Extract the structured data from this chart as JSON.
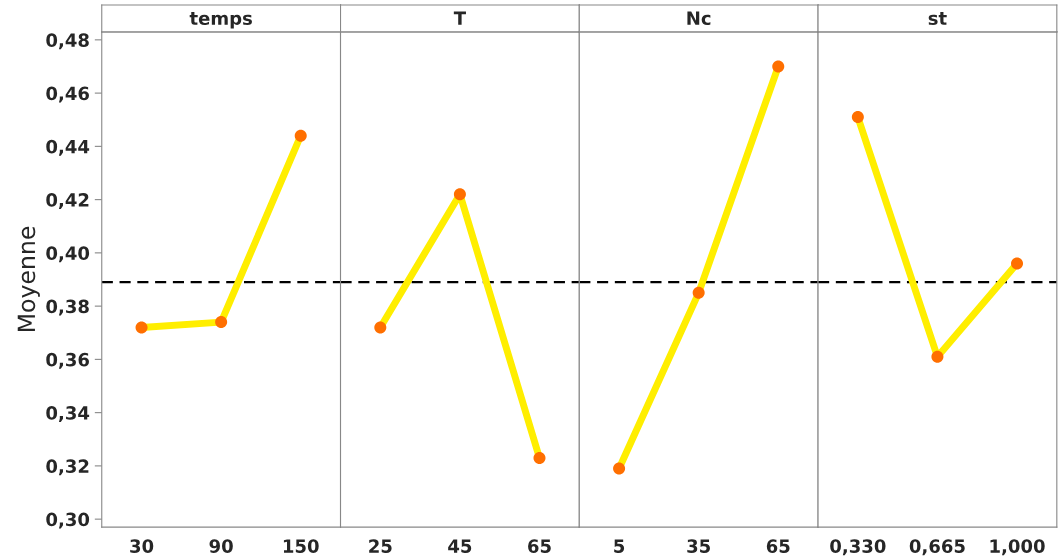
{
  "chart_data": [
    {
      "type": "line",
      "title": "temps",
      "ylabel": "Moyenne",
      "categories": [
        "30",
        "90",
        "150"
      ],
      "series": [
        {
          "color": "#ffee00",
          "colors": [
            "#ff6f00",
            "#ff6f00",
            "#ff6f00"
          ],
          "values": [
            0.372,
            0.374,
            0.444
          ]
        }
      ],
      "ylim": [
        0.297,
        0.483
      ],
      "yticks": [
        {
          "value": 0.3,
          "label": "0,30"
        },
        {
          "value": 0.32,
          "label": "0,32"
        },
        {
          "value": 0.34,
          "label": "0,34"
        },
        {
          "value": 0.36,
          "label": "0,36"
        },
        {
          "value": 0.38,
          "label": "0,38"
        },
        {
          "value": 0.4,
          "label": "0,40"
        },
        {
          "value": 0.42,
          "label": "0,42"
        },
        {
          "value": 0.44,
          "label": "0,44"
        },
        {
          "value": 0.46,
          "label": "0,46"
        },
        {
          "value": 0.48,
          "label": "0,48"
        }
      ],
      "marker": "circle",
      "ref_lines": [
        {
          "axis": "y",
          "value": 0.389,
          "color": "#000000",
          "line_style": "dashed"
        }
      ],
      "grid": false
    },
    {
      "type": "line",
      "title": "T",
      "categories": [
        "25",
        "45",
        "65"
      ],
      "series": [
        {
          "color": "#ffee00",
          "colors": [
            "#ff6f00",
            "#ff6f00",
            "#ff6f00"
          ],
          "values": [
            0.372,
            0.422,
            0.323
          ]
        }
      ],
      "ylim": [
        0.297,
        0.483
      ],
      "tick_labels": "x",
      "marker": "circle",
      "ref_lines": [
        {
          "axis": "y",
          "value": 0.389,
          "color": "#000000",
          "line_style": "dashed"
        }
      ],
      "grid": false
    },
    {
      "type": "line",
      "title": "Nc",
      "categories": [
        "5",
        "35",
        "65"
      ],
      "series": [
        {
          "color": "#ffee00",
          "colors": [
            "#ff6f00",
            "#ff6f00",
            "#ff6f00"
          ],
          "values": [
            0.319,
            0.385,
            0.47
          ]
        }
      ],
      "ylim": [
        0.297,
        0.483
      ],
      "tick_labels": "x",
      "marker": "circle",
      "ref_lines": [
        {
          "axis": "y",
          "value": 0.389,
          "color": "#000000",
          "line_style": "dashed"
        }
      ],
      "grid": false
    },
    {
      "type": "line",
      "title": "st",
      "categories": [
        "0,330",
        "0,665",
        "1,000"
      ],
      "series": [
        {
          "color": "#ffee00",
          "colors": [
            "#ff6f00",
            "#ff6f00",
            "#ff6f00"
          ],
          "values": [
            0.451,
            0.361,
            0.396
          ]
        }
      ],
      "ylim": [
        0.297,
        0.483
      ],
      "tick_labels": "x",
      "marker": "circle",
      "ref_lines": [
        {
          "axis": "y",
          "value": 0.389,
          "color": "#000000",
          "line_style": "dashed"
        }
      ],
      "grid": false
    }
  ]
}
